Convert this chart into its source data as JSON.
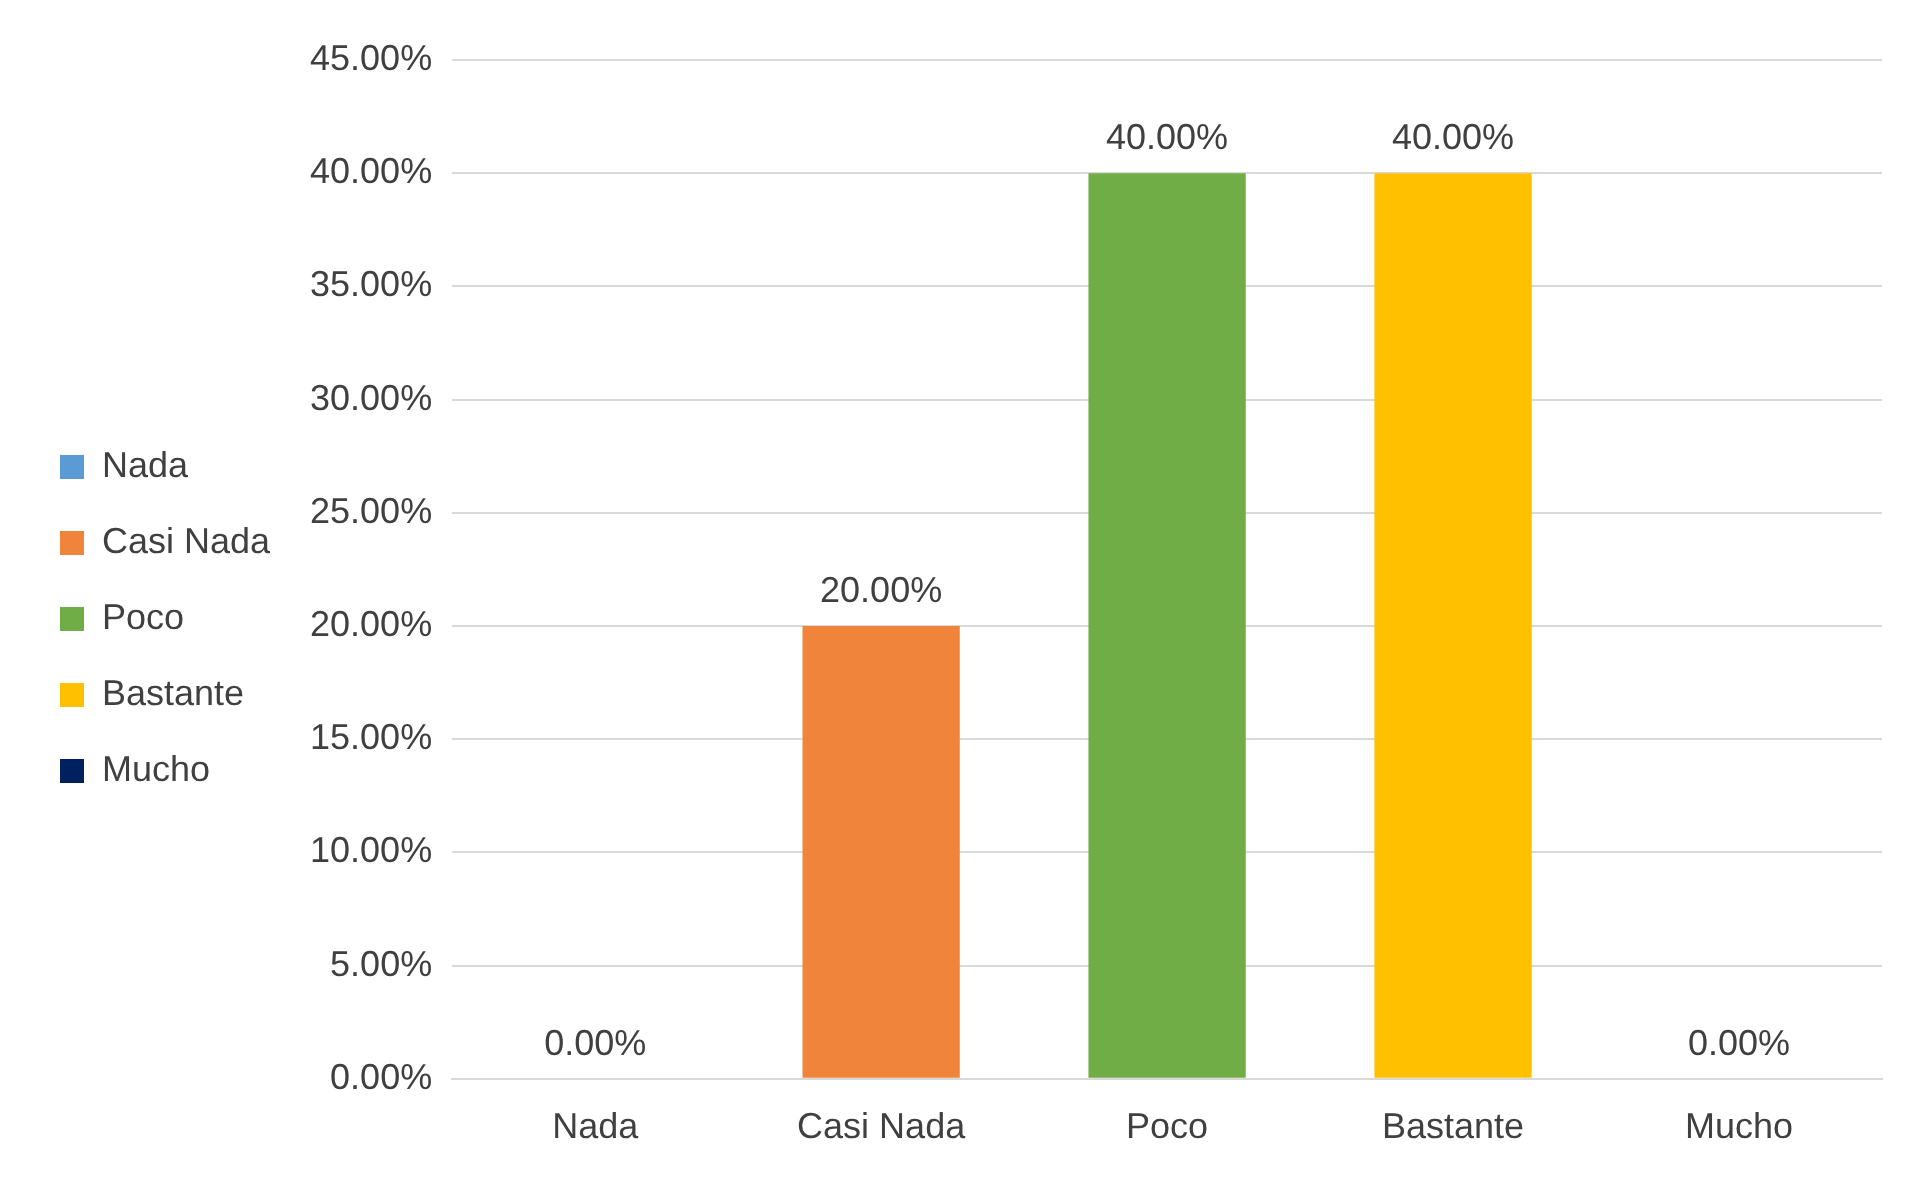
{
  "chart_data": {
    "type": "bar",
    "categories": [
      "Nada",
      "Casi Nada",
      "Poco",
      "Bastante",
      "Mucho"
    ],
    "series": [
      {
        "name": "Nada",
        "color": "#5b9bd5",
        "values": [
          0,
          null,
          null,
          null,
          null
        ],
        "value_labels": [
          "0.00%",
          null,
          null,
          null,
          null
        ]
      },
      {
        "name": "Casi Nada",
        "color": "#f0843a",
        "values": [
          null,
          20,
          null,
          null,
          null
        ],
        "value_labels": [
          null,
          "20.00%",
          null,
          null,
          null
        ]
      },
      {
        "name": "Poco",
        "color": "#70ad47",
        "values": [
          null,
          null,
          40,
          null,
          null
        ],
        "value_labels": [
          null,
          null,
          "40.00%",
          null,
          null
        ]
      },
      {
        "name": "Bastante",
        "color": "#ffc000",
        "values": [
          null,
          null,
          null,
          40,
          null
        ],
        "value_labels": [
          null,
          null,
          null,
          "40.00%",
          null
        ]
      },
      {
        "name": "Mucho",
        "color": "#002060",
        "values": [
          null,
          null,
          null,
          null,
          0
        ],
        "value_labels": [
          null,
          null,
          null,
          null,
          "0.00%"
        ]
      }
    ],
    "ylim": [
      0,
      45
    ],
    "yticks": [
      {
        "value": 0,
        "label": "0.00%"
      },
      {
        "value": 5,
        "label": "5.00%"
      },
      {
        "value": 10,
        "label": "10.00%"
      },
      {
        "value": 15,
        "label": "15.00%"
      },
      {
        "value": 20,
        "label": "20.00%"
      },
      {
        "value": 25,
        "label": "25.00%"
      },
      {
        "value": 30,
        "label": "30.00%"
      },
      {
        "value": 35,
        "label": "35.00%"
      },
      {
        "value": 40,
        "label": "40.00%"
      },
      {
        "value": 45,
        "label": "45.00%"
      }
    ],
    "grid": "y",
    "legend": "left"
  }
}
